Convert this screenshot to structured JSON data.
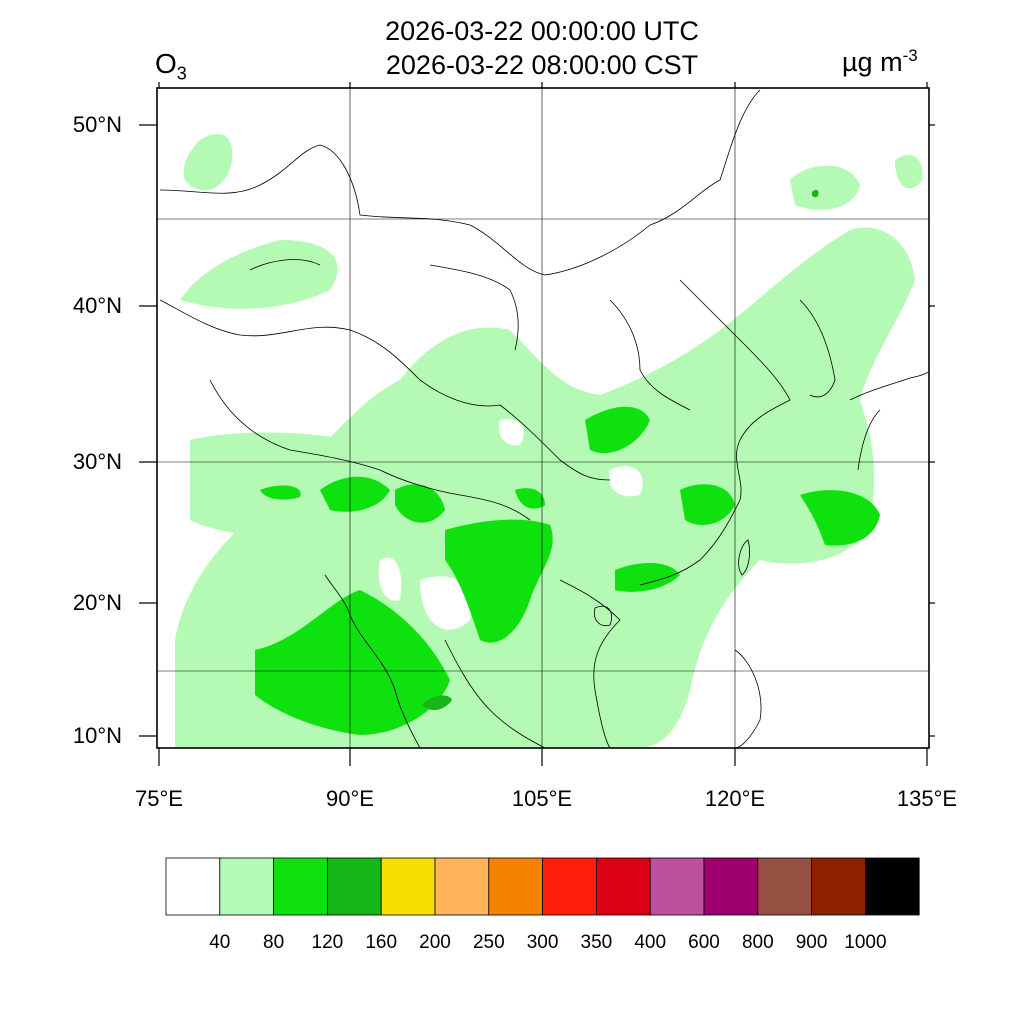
{
  "title": {
    "utc": "2026-03-22 00:00:00 UTC",
    "local": "2026-03-22 08:00:00 CST"
  },
  "species": {
    "base": "O",
    "sub": "3"
  },
  "unit": {
    "base": "µg m",
    "sup": "-3"
  },
  "map": {
    "lat_labels": [
      "50°N",
      "40°N",
      "30°N",
      "20°N",
      "10°N"
    ],
    "lon_labels": [
      "75°E",
      "90°E",
      "105°E",
      "120°E",
      "135°E"
    ],
    "field_colors": {
      "40_80": "#b4fab4",
      "80_120": "#0fe10f",
      "120_160": "#16b616"
    }
  },
  "colorbar": {
    "colors": [
      "#ffffff",
      "#b4fab4",
      "#0fe10f",
      "#16b616",
      "#f5e000",
      "#ffb45a",
      "#f58200",
      "#ff1e0a",
      "#dc0014",
      "#be50a0",
      "#a0006e",
      "#965041",
      "#8c2000",
      "#000000"
    ],
    "labels": [
      "40",
      "80",
      "120",
      "160",
      "200",
      "250",
      "300",
      "350",
      "400",
      "600",
      "800",
      "900",
      "1000"
    ]
  }
}
